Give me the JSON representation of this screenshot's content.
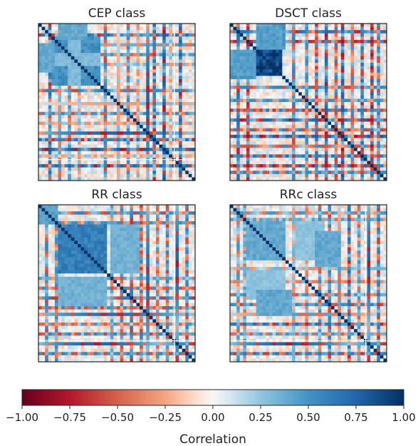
{
  "chart_data": {
    "type": "heatmap",
    "panels": [
      {
        "title": "CEP class",
        "size": 48,
        "blocks": [
          {
            "rows": [
              4,
              18
            ],
            "cols": [
              4,
              18
            ],
            "value": 0.6
          },
          {
            "rows": [
              4,
              18
            ],
            "cols": [
              9,
              12
            ],
            "value": 0.35
          },
          {
            "rows": [
              0,
              4
            ],
            "cols": [
              6,
              14
            ],
            "value": 0.45
          }
        ],
        "bands": [
          {
            "index": 3,
            "value": 0.7
          },
          {
            "index": 6,
            "value": 0.55
          },
          {
            "index": 9,
            "value": 0.5
          },
          {
            "index": 12,
            "value": 0.35
          },
          {
            "index": 20,
            "value": 0.6
          },
          {
            "index": 24,
            "value": -0.3
          },
          {
            "index": 27,
            "value": 0.55
          },
          {
            "index": 30,
            "value": -0.35
          },
          {
            "index": 33,
            "value": 0.75
          },
          {
            "index": 35,
            "value": 0.7
          },
          {
            "index": 38,
            "value": 0.8
          },
          {
            "index": 40,
            "value": -0.3
          },
          {
            "index": 43,
            "value": 0.75
          }
        ],
        "separators": [
          41.6
        ],
        "vseparators": [
          41.6
        ]
      },
      {
        "title": "DSCT class",
        "size": 48,
        "blocks": [
          {
            "rows": [
              8,
              15
            ],
            "cols": [
              8,
              15
            ],
            "value": 1.0
          },
          {
            "rows": [
              0,
              7
            ],
            "cols": [
              8,
              16
            ],
            "value": 0.55
          },
          {
            "rows": [
              8,
              15
            ],
            "cols": [
              0,
              7
            ],
            "value": 0.5
          }
        ],
        "bands": [
          {
            "index": 2,
            "value": 0.7
          },
          {
            "index": 5,
            "value": -0.7
          },
          {
            "index": 19,
            "value": 0.6
          },
          {
            "index": 23,
            "value": 0.55
          },
          {
            "index": 26,
            "value": -0.65
          },
          {
            "index": 29,
            "value": 0.75
          },
          {
            "index": 32,
            "value": -0.6
          },
          {
            "index": 34,
            "value": 0.8
          },
          {
            "index": 37,
            "value": -0.55
          },
          {
            "index": 40,
            "value": 0.7
          },
          {
            "index": 43,
            "value": -0.75
          },
          {
            "index": 45,
            "value": 0.6
          }
        ],
        "separators": [],
        "vseparators": []
      },
      {
        "title": "RR class",
        "size": 48,
        "blocks": [
          {
            "rows": [
              6,
              20
            ],
            "cols": [
              6,
              20
            ],
            "value": 0.7
          },
          {
            "rows": [
              6,
              20
            ],
            "cols": [
              22,
              30
            ],
            "value": 0.4
          },
          {
            "rows": [
              0,
              5
            ],
            "cols": [
              0,
              5
            ],
            "value": 0.5
          }
        ],
        "bands": [
          {
            "index": 2,
            "value": 0.6
          },
          {
            "index": 5,
            "value": 0.55
          },
          {
            "index": 22,
            "value": 0.45
          },
          {
            "index": 25,
            "value": -0.55
          },
          {
            "index": 28,
            "value": 0.65
          },
          {
            "index": 31,
            "value": -0.6
          },
          {
            "index": 33,
            "value": 0.7
          },
          {
            "index": 36,
            "value": -0.5
          },
          {
            "index": 39,
            "value": 0.6
          },
          {
            "index": 42,
            "value": 0.75
          },
          {
            "index": 45,
            "value": 0.6
          }
        ],
        "separators": [
          41.6
        ],
        "vseparators": [
          41.6
        ]
      },
      {
        "title": "RRc class",
        "size": 48,
        "blocks": [
          {
            "rows": [
              5,
              16
            ],
            "cols": [
              5,
              16
            ],
            "value": 0.45
          },
          {
            "rows": [
              5,
              16
            ],
            "cols": [
              20,
              28
            ],
            "value": 0.3
          },
          {
            "rows": [
              26,
              33
            ],
            "cols": [
              8,
              18
            ],
            "value": 0.45
          }
        ],
        "bands": [
          {
            "index": 2,
            "value": 0.5
          },
          {
            "index": 4,
            "value": 0.45
          },
          {
            "index": 19,
            "value": 0.35
          },
          {
            "index": 23,
            "value": -0.4
          },
          {
            "index": 27,
            "value": 0.55
          },
          {
            "index": 30,
            "value": 0.6
          },
          {
            "index": 33,
            "value": -0.45
          },
          {
            "index": 36,
            "value": 0.7
          },
          {
            "index": 39,
            "value": 0.5
          },
          {
            "index": 42,
            "value": 0.75
          },
          {
            "index": 45,
            "value": 0.65
          }
        ],
        "separators": [
          41.6
        ],
        "vseparators": [
          41.6
        ]
      }
    ],
    "colorbar": {
      "cmap": "RdBu",
      "range": [
        -1.0,
        1.0
      ],
      "ticks": [
        "−1.00",
        "−0.75",
        "−0.50",
        "−0.25",
        "0.00",
        "0.25",
        "0.50",
        "0.75",
        "1.00"
      ],
      "label": "Correlation",
      "stops": [
        {
          "v": -1.0,
          "c": "#67001f"
        },
        {
          "v": -0.75,
          "c": "#b2182b"
        },
        {
          "v": -0.5,
          "c": "#d6604d"
        },
        {
          "v": -0.25,
          "c": "#f4a582"
        },
        {
          "v": -0.1,
          "c": "#fddbc7"
        },
        {
          "v": 0.0,
          "c": "#f7f7f7"
        },
        {
          "v": 0.1,
          "c": "#d1e5f0"
        },
        {
          "v": 0.25,
          "c": "#92c5de"
        },
        {
          "v": 0.5,
          "c": "#4393c3"
        },
        {
          "v": 0.75,
          "c": "#2166ac"
        },
        {
          "v": 1.0,
          "c": "#053061"
        }
      ]
    }
  }
}
